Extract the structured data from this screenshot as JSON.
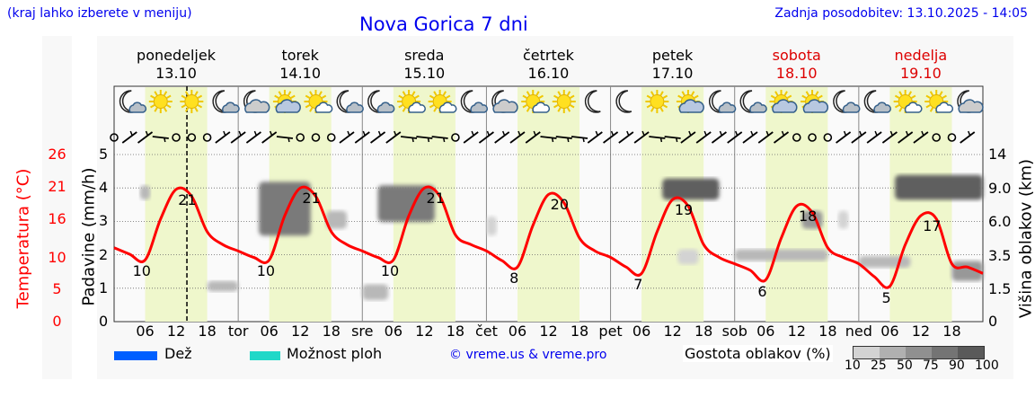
{
  "header": {
    "menu_hint": "(kraj lahko izberete v meniju)",
    "title": "Nova Gorica 7 dni",
    "updated": "Zadnja posodobitev: 13.10.2025 - 14:05"
  },
  "days": [
    {
      "name": "ponedeljek",
      "date": "13.10",
      "weekend": false,
      "abbr": ""
    },
    {
      "name": "torek",
      "date": "14.10",
      "weekend": false,
      "abbr": "tor"
    },
    {
      "name": "sreda",
      "date": "15.10",
      "weekend": false,
      "abbr": "sre"
    },
    {
      "name": "četrtek",
      "date": "16.10",
      "weekend": false,
      "abbr": "čet"
    },
    {
      "name": "petek",
      "date": "17.10",
      "weekend": false,
      "abbr": "pet"
    },
    {
      "name": "sobota",
      "date": "18.10",
      "weekend": true,
      "abbr": "sob"
    },
    {
      "name": "nedelja",
      "date": "19.10",
      "weekend": true,
      "abbr": "ned"
    }
  ],
  "hour_ticks": [
    "06",
    "12",
    "18"
  ],
  "colors": {
    "temp": "#ff0000",
    "day_band": "#eff7cc",
    "rain": "#0060ff",
    "showers": "#20d8c8",
    "weekend": "#dd0000",
    "link": "#0000ee"
  },
  "chart_data": {
    "type": "line",
    "title": "Nova Gorica 7 dni",
    "axes": {
      "temperature": {
        "label": "Temperatura (°C)",
        "ticks": [
          "0",
          "5",
          "10",
          "16",
          "21",
          "26"
        ]
      },
      "precipitation": {
        "label": "Padavine (mm/h)",
        "ticks": [
          "0",
          "1",
          "2",
          "3",
          "4",
          "5"
        ],
        "ylim": [
          0,
          5
        ]
      },
      "cloud_height": {
        "label": "Višina oblakov (km)",
        "ticks": [
          "0",
          "1.5",
          "3.5",
          "6.0",
          "9.0",
          "14"
        ]
      }
    },
    "now_hour": 14.08,
    "temperature_3h": [
      [
        11.5,
        10.5,
        9.6,
        16,
        20.6,
        19.5,
        14,
        12
      ],
      [
        11,
        10,
        9.6,
        16.5,
        20.8,
        19.5,
        14,
        12
      ],
      [
        11,
        10,
        9.6,
        16.5,
        20.8,
        19.5,
        13.5,
        12
      ],
      [
        11,
        9.5,
        8.5,
        15,
        19.8,
        18.5,
        13,
        11
      ],
      [
        10,
        8.5,
        7.5,
        14,
        19,
        18,
        12,
        10
      ],
      [
        9,
        8,
        6.5,
        13,
        18,
        17,
        11.5,
        10
      ],
      [
        9,
        7,
        5.5,
        12,
        16.5,
        16,
        9,
        8.5
      ]
    ],
    "temperature_end": 7.5,
    "temp_labels": [
      {
        "day": 0,
        "hour": 5,
        "value": "10",
        "pos": "min"
      },
      {
        "day": 0,
        "hour": 13.8,
        "value": "21",
        "pos": "max"
      },
      {
        "day": 1,
        "hour": 5,
        "value": "10",
        "pos": "min"
      },
      {
        "day": 1,
        "hour": 13.8,
        "value": "21",
        "pos": "max"
      },
      {
        "day": 2,
        "hour": 5,
        "value": "10",
        "pos": "min"
      },
      {
        "day": 2,
        "hour": 13.8,
        "value": "21",
        "pos": "max"
      },
      {
        "day": 3,
        "hour": 5,
        "value": "8",
        "pos": "min"
      },
      {
        "day": 3,
        "hour": 13.8,
        "value": "20",
        "pos": "max"
      },
      {
        "day": 4,
        "hour": 5,
        "value": "7",
        "pos": "min"
      },
      {
        "day": 4,
        "hour": 13.8,
        "value": "19",
        "pos": "max"
      },
      {
        "day": 5,
        "hour": 5,
        "value": "6",
        "pos": "min"
      },
      {
        "day": 5,
        "hour": 13.8,
        "value": "18",
        "pos": "max"
      },
      {
        "day": 6,
        "hour": 5,
        "value": "5",
        "pos": "min"
      },
      {
        "day": 6,
        "hour": 13.8,
        "value": "17",
        "pos": "max"
      }
    ],
    "clouds": [
      {
        "day": 0,
        "h0": 5,
        "h1": 7,
        "km0": 8,
        "km1": 9.5,
        "density": 25
      },
      {
        "day": 0,
        "h0": 18,
        "h1": 24,
        "km0": 1.4,
        "km1": 2,
        "density": 25
      },
      {
        "day": 1,
        "h0": 4,
        "h1": 14,
        "km0": 5,
        "km1": 10,
        "density": 75
      },
      {
        "day": 1,
        "h0": 17,
        "h1": 21,
        "km0": 5.5,
        "km1": 7,
        "density": 25
      },
      {
        "day": 2,
        "h0": 0,
        "h1": 5,
        "km0": 1,
        "km1": 1.8,
        "density": 25
      },
      {
        "day": 2,
        "h0": 3,
        "h1": 14,
        "km0": 6,
        "km1": 9.5,
        "density": 75
      },
      {
        "day": 3,
        "h0": 0,
        "h1": 2,
        "km0": 5,
        "km1": 6.5,
        "density": 10
      },
      {
        "day": 4,
        "h0": 10,
        "h1": 21,
        "km0": 8,
        "km1": 10.5,
        "density": 90
      },
      {
        "day": 4,
        "h0": 13,
        "h1": 17,
        "km0": 3,
        "km1": 4,
        "density": 10
      },
      {
        "day": 5,
        "h0": 0,
        "h1": 18,
        "km0": 3.2,
        "km1": 4,
        "density": 25
      },
      {
        "day": 5,
        "h0": 13,
        "h1": 17,
        "km0": 5.5,
        "km1": 7,
        "density": 50
      },
      {
        "day": 5,
        "h0": 20,
        "h1": 22,
        "km0": 5.5,
        "km1": 7,
        "density": 10
      },
      {
        "day": 6,
        "h0": 0,
        "h1": 10,
        "km0": 2.8,
        "km1": 3.5,
        "density": 25
      },
      {
        "day": 6,
        "h0": 7,
        "h1": 24,
        "km0": 8,
        "km1": 11,
        "density": 90
      },
      {
        "day": 6,
        "h0": 18,
        "h1": 24,
        "km0": 2,
        "km1": 3.2,
        "density": 50
      }
    ],
    "weather_icons": [
      [
        "moon-cloud",
        "sun",
        "sun",
        "moon-cloud"
      ],
      [
        "moon-bigcloud",
        "sun-bigcloud",
        "sun-cloud",
        "moon-cloud"
      ],
      [
        "moon-cloud",
        "sun-cloud",
        "sun-cloud",
        "moon-cloud"
      ],
      [
        "moon-bigcloud",
        "sun-cloud",
        "sun",
        "moon"
      ],
      [
        "moon",
        "sun",
        "sun-bigcloud",
        "moon-cloud"
      ],
      [
        "moon-cloud",
        "sun-bigcloud",
        "sun-bigcloud",
        "moon-cloud"
      ],
      [
        "moon-cloud",
        "sun-cloud",
        "sun-cloud",
        "moon-bigcloud"
      ]
    ],
    "wind": [
      [
        "c",
        "sw",
        "sw",
        "w",
        "c",
        "c",
        "c",
        "sw"
      ],
      [
        "sw",
        "sw",
        "sw",
        "w",
        "c",
        "c",
        "c",
        "sw"
      ],
      [
        "sw",
        "sw",
        "sw",
        "w",
        "w",
        "w",
        "c",
        "sw"
      ],
      [
        "sw",
        "sw",
        "sw",
        "sw",
        "w",
        "w",
        "w",
        "sw"
      ],
      [
        "sw",
        "sw",
        "sw",
        "w",
        "w",
        "sw",
        "sw",
        "sw"
      ],
      [
        "sw",
        "sw",
        "sw",
        "sw",
        "c",
        "c",
        "c",
        "sw"
      ],
      [
        "sw",
        "sw",
        "sw",
        "sw",
        "sw",
        "c",
        "c",
        "sw"
      ]
    ]
  },
  "legend": {
    "rain": "Dež",
    "showers": "Možnost ploh",
    "credit": "© vreme.us & vreme.pro",
    "cloud_density": "Gostota oblakov (%)",
    "density_ticks": [
      "10",
      "25",
      "50",
      "75",
      "90",
      "100"
    ],
    "density_colors": [
      "#d3d3d3",
      "#b0b0b0",
      "#909090",
      "#747474",
      "#5a5a5a"
    ]
  }
}
